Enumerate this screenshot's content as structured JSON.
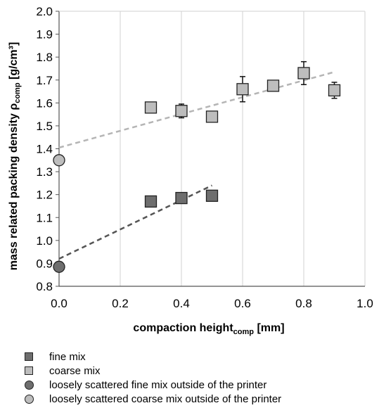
{
  "chart_data": {
    "type": "scatter",
    "xlabel": "compaction height",
    "xlabel_sub": "comp",
    "xlabel_unit": " [mm]",
    "ylabel": "mass related packing density ρ",
    "ylabel_sub": "comp",
    "ylabel_unit": " [g/cm³]",
    "xlim": [
      0.0,
      1.0
    ],
    "ylim": [
      0.8,
      2.0
    ],
    "x_ticks": [
      "0.0",
      "0.2",
      "0.4",
      "0.6",
      "0.8",
      "1.0"
    ],
    "y_ticks": [
      "0.8",
      "0.9",
      "1.0",
      "1.1",
      "1.2",
      "1.3",
      "1.4",
      "1.5",
      "1.6",
      "1.7",
      "1.8",
      "1.9",
      "2.0"
    ],
    "grid": "vertical",
    "legend_position": "bottom",
    "series": [
      {
        "name": "fine mix",
        "marker": "square",
        "color": "#6e6e6e",
        "points": [
          {
            "x": 0.3,
            "y": 1.17,
            "err": 0
          },
          {
            "x": 0.4,
            "y": 1.185,
            "err": 0.01
          },
          {
            "x": 0.5,
            "y": 1.195,
            "err": 0.01
          }
        ],
        "trendline": {
          "x": [
            0.0,
            0.5
          ],
          "y": [
            0.92,
            1.24
          ],
          "color": "#555555"
        }
      },
      {
        "name": "coarse mix",
        "marker": "square",
        "color": "#bdbdbd",
        "points": [
          {
            "x": 0.3,
            "y": 1.58,
            "err": 0
          },
          {
            "x": 0.4,
            "y": 1.565,
            "err": 0.03
          },
          {
            "x": 0.5,
            "y": 1.54,
            "err": 0
          },
          {
            "x": 0.6,
            "y": 1.66,
            "err": 0.055
          },
          {
            "x": 0.7,
            "y": 1.675,
            "err": 0
          },
          {
            "x": 0.8,
            "y": 1.73,
            "err": 0.05
          },
          {
            "x": 0.9,
            "y": 1.655,
            "err": 0.035
          }
        ],
        "trendline": {
          "x": [
            0.0,
            0.9
          ],
          "y": [
            1.405,
            1.735
          ],
          "color": "#b5b5b5"
        }
      },
      {
        "name": "loosely scattered fine mix outside of the printer",
        "marker": "circle",
        "color": "#6e6e6e",
        "points": [
          {
            "x": 0.0,
            "y": 0.885,
            "err": 0
          }
        ]
      },
      {
        "name": "loosely scattered coarse mix outside of the printer",
        "marker": "circle",
        "color": "#bdbdbd",
        "points": [
          {
            "x": 0.0,
            "y": 1.35,
            "err": 0
          }
        ]
      }
    ]
  }
}
